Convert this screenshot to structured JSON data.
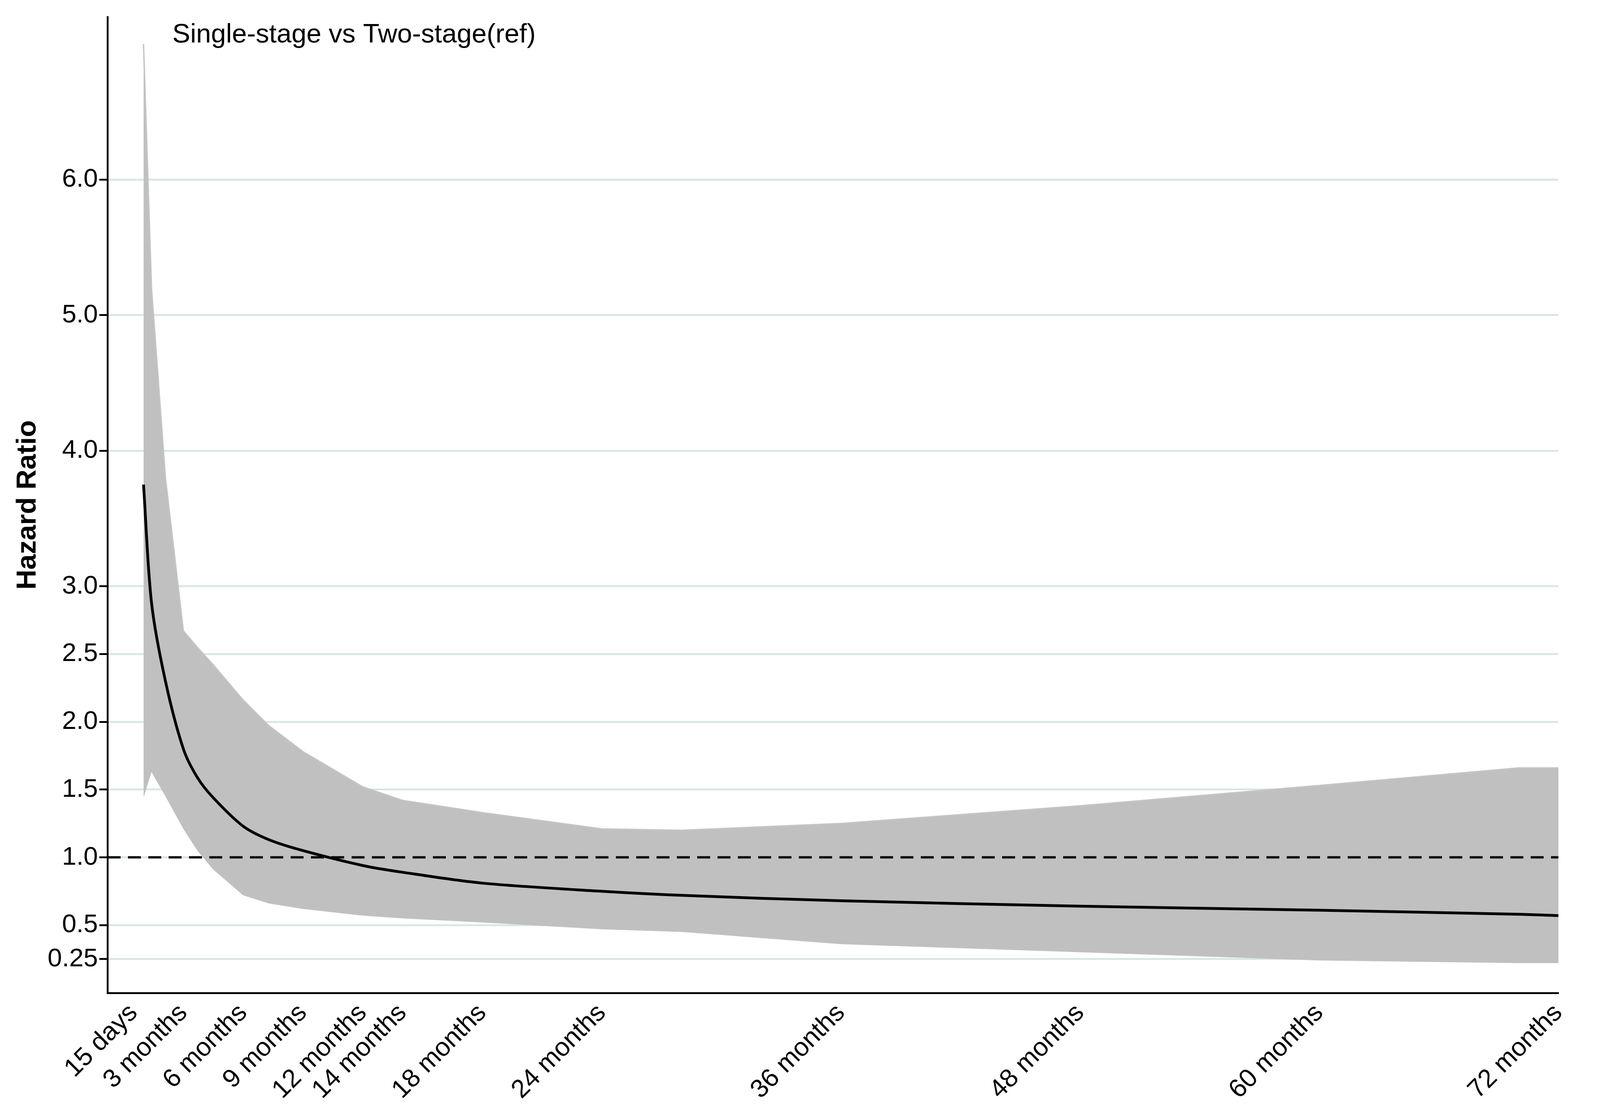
{
  "chart_data": {
    "type": "line",
    "title": "Single-stage vs Two-stage(ref)",
    "y_label": "Hazard Ratio",
    "x": [
      1.0,
      1.4,
      2.1,
      3,
      3.7,
      4.5,
      6,
      7.3,
      9,
      12,
      14,
      18,
      24,
      28,
      36,
      48,
      60,
      70,
      72
    ],
    "values": [
      3.75,
      2.88,
      2.3,
      1.8,
      1.59,
      1.44,
      1.23,
      1.13,
      1.05,
      0.94,
      0.89,
      0.81,
      0.75,
      0.72,
      0.68,
      0.64,
      0.61,
      0.58,
      0.57
    ],
    "ci_lower": [
      1.44,
      1.63,
      1.45,
      1.21,
      1.05,
      0.91,
      0.72,
      0.66,
      0.62,
      0.57,
      0.55,
      0.52,
      0.47,
      0.45,
      0.36,
      0.3,
      0.24,
      0.22,
      0.22
    ],
    "ci_upper": [
      7.0,
      5.2,
      3.8,
      2.67,
      2.55,
      2.42,
      2.16,
      1.97,
      1.78,
      1.52,
      1.42,
      1.33,
      1.21,
      1.2,
      1.25,
      1.38,
      1.53,
      1.66,
      1.66
    ],
    "reference_line": 1,
    "color": "#000000",
    "xlim": [
      -0.8,
      72
    ],
    "xticks": [
      {
        "value": 0.5,
        "label": "15 days"
      },
      {
        "value": 3,
        "label": "3 months"
      },
      {
        "value": 6,
        "label": "6 months"
      },
      {
        "value": 9,
        "label": "9 months"
      },
      {
        "value": 12,
        "label": "12 months"
      },
      {
        "value": 14,
        "label": "14 months"
      },
      {
        "value": 18,
        "label": "18 months"
      },
      {
        "value": 24,
        "label": "24 months"
      },
      {
        "value": 36,
        "label": "36 months"
      },
      {
        "value": 48,
        "label": "48 months"
      },
      {
        "value": 60,
        "label": "60 months"
      },
      {
        "value": 72,
        "label": "72 months"
      }
    ],
    "ylim": [
      0,
      7.2
    ],
    "yticks": [
      0.25,
      0.5,
      {
        "value": 1,
        "label": "1.0"
      },
      1.5,
      {
        "value": 2,
        "label": "2.0"
      },
      2.5,
      {
        "value": 3,
        "label": "3.0"
      },
      {
        "value": 4,
        "label": "4.0"
      },
      {
        "value": 5,
        "label": "5.0"
      },
      {
        "value": 6,
        "label": "6.0"
      }
    ],
    "grid": true
  }
}
